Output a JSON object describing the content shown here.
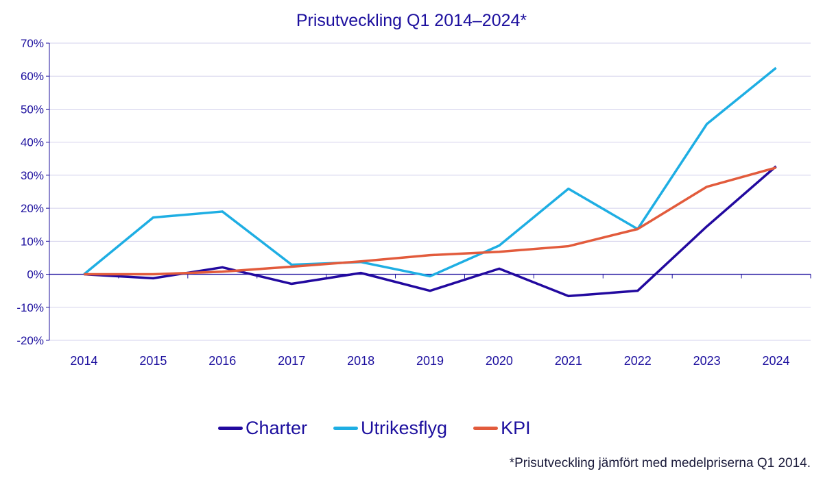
{
  "chart_data": {
    "type": "line",
    "title": "Prisutveckling Q1 2014–2024*",
    "xlabel": "",
    "ylabel": "",
    "categories": [
      "2014",
      "2015",
      "2016",
      "2017",
      "2018",
      "2019",
      "2020",
      "2021",
      "2022",
      "2023",
      "2024"
    ],
    "ylim": [
      -20,
      70
    ],
    "yticks": [
      -20,
      -10,
      0,
      10,
      20,
      30,
      40,
      50,
      60,
      70
    ],
    "ytick_labels": [
      "-20%",
      "-10%",
      "0%",
      "10%",
      "20%",
      "30%",
      "40%",
      "50%",
      "60%",
      "70%"
    ],
    "grid": true,
    "legend": "bottom",
    "series": [
      {
        "name": "Charter",
        "color": "#22099f",
        "values": [
          0,
          -1.2,
          2.1,
          -2.9,
          0.4,
          -5.0,
          1.7,
          -6.6,
          -5.0,
          14.5,
          32.7
        ]
      },
      {
        "name": "Utrikesflyg",
        "color": "#1eaee3",
        "values": [
          0,
          17.2,
          19.0,
          2.9,
          3.7,
          -0.6,
          8.7,
          25.9,
          13.7,
          45.5,
          62.5
        ]
      },
      {
        "name": "KPI",
        "color": "#e25b3c",
        "values": [
          0,
          0,
          0.8,
          2.3,
          3.9,
          5.8,
          6.8,
          8.5,
          13.7,
          26.5,
          32.3
        ]
      }
    ],
    "footnote": "*Prisutveckling jämfört med medelpriserna Q1 2014."
  }
}
